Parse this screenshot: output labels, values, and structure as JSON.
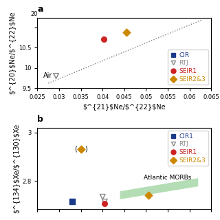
{
  "chart_data": [
    {
      "type": "scatter",
      "title": "a",
      "xlabel": "$^{21}$Ne/$^{22}$Ne",
      "ylabel": "$^{20}$Ne/$^{22}$Ne",
      "xlim": [
        0.025,
        0.065
      ],
      "ylim": [
        9.5,
        11.25
      ],
      "xticks": [
        0.025,
        0.03,
        0.035,
        0.04,
        0.045,
        0.05,
        0.055,
        0.06,
        0.065
      ],
      "yticks": [
        9.5,
        10,
        10.5,
        {
          "value": 11.0,
          "label": ""
        }
      ],
      "legend": "lower right",
      "series": [
        {
          "type": "line",
          "line_style": "dotted",
          "color": "#7f7f7f",
          "x": [
            0.0275,
            0.063
          ],
          "y": [
            9.62,
            11.2
          ]
        },
        {
          "marker": "triangle_open",
          "color": "#7f7f7f",
          "x": [
            0.0293
          ],
          "y": [
            9.8
          ]
        },
        {
          "name": "CIR",
          "color": "#1a3a8a",
          "marker": "square",
          "x": [],
          "y": []
        },
        {
          "name": "RTJ",
          "color": "#888888",
          "marker": "triangle_open",
          "x": [],
          "y": []
        },
        {
          "name": "SEIR1",
          "color": "#cc2222",
          "marker": "circle",
          "x": [
            0.0403
          ],
          "y": [
            10.72
          ]
        },
        {
          "name": "SEIR2&3",
          "color": "#cc8800",
          "marker": "diamond",
          "x": [
            0.0455
          ],
          "y": [
            10.88
          ]
        }
      ],
      "annotations": [
        {
          "text": "Air",
          "x": 0.0293,
          "y": 9.8
        },
        {
          "text": "20"
        }
      ]
    },
    {
      "type": "scatter",
      "title": "b",
      "ylabel": "$^{134}$Xe/$^{130}$Xe",
      "xlim": [
        0.025,
        0.065
      ],
      "ylim": [
        2.685,
        3.02
      ],
      "xticks": [
        0.025,
        0.03,
        0.035,
        0.04,
        0.045,
        0.05,
        0.055,
        0.06,
        0.065
      ],
      "yticks": [
        2.8,
        3
      ],
      "tick_labels": "y",
      "legend": "upper right",
      "series": [
        {
          "type": "area",
          "color": "#2ca02c",
          "x": [
            0.044,
            0.062,
            0.062,
            0.044
          ],
          "y": [
            2.725,
            2.778,
            2.812,
            2.758
          ]
        },
        {
          "name": "CIR1",
          "color": "#1a3a8a",
          "marker": "square",
          "x": [
            0.033
          ],
          "y": [
            2.715
          ]
        },
        {
          "name": "RTJ",
          "color": "#888888",
          "marker": "triangle_open",
          "x": [
            0.04,
            0.0405
          ],
          "y": [
            2.735,
            2.715
          ]
        },
        {
          "name": "SEIR1",
          "color": "#cc2222",
          "marker": "circle",
          "x": [
            0.0405
          ],
          "y": [
            2.708
          ]
        },
        {
          "name": "SEIR2&3",
          "color": "#cc8800",
          "marker": "diamond",
          "x": [
            0.0505,
            0.035
          ],
          "y": [
            2.742,
            2.932
          ]
        }
      ],
      "annotations": [
        {
          "text": "Atlantic MORBs",
          "x": 0.055,
          "y": 2.8
        },
        {
          "text": "(",
          "x": 0.035,
          "y": 2.932
        },
        {
          "text": ")",
          "x": 0.035,
          "y": 2.932
        }
      ]
    }
  ]
}
